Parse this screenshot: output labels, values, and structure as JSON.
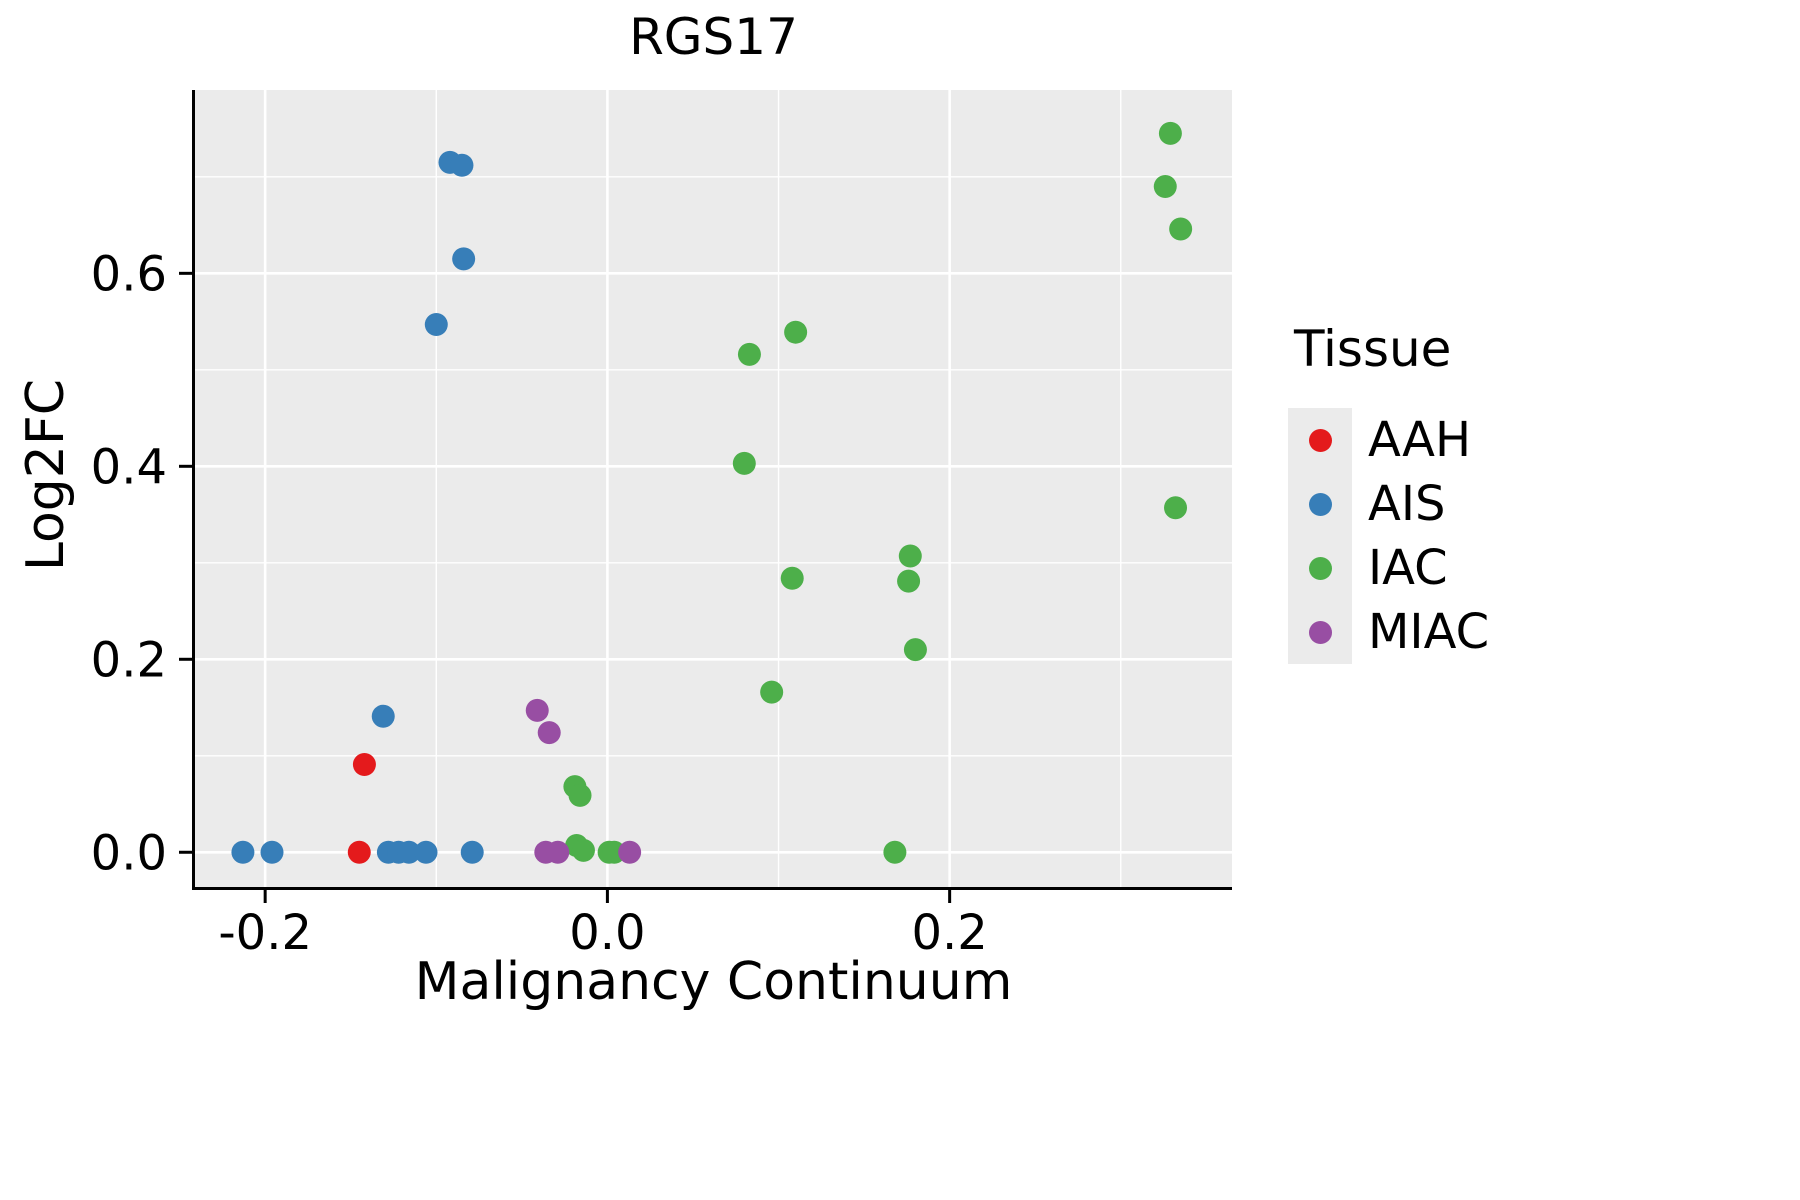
{
  "chart_data": {
    "type": "scatter",
    "title": "RGS17",
    "xlabel": "Malignancy Continuum",
    "ylabel": "Log2FC",
    "legend_title": "Tissue",
    "legend_position": "right",
    "grid": true,
    "panel_background": "#EBEBEB",
    "grid_color": "#FFFFFF",
    "axis_color": "#000000",
    "xlim": [
      -0.241,
      0.365
    ],
    "ylim": [
      -0.036,
      0.79
    ],
    "x_ticks": [
      -0.2,
      0.0,
      0.2
    ],
    "x_minor_ticks": [
      -0.1,
      0.1,
      0.3
    ],
    "x_ticklabels": [
      "-0.2",
      "0.0",
      "0.2"
    ],
    "y_ticks": [
      0.0,
      0.2,
      0.4,
      0.6
    ],
    "y_minor_ticks": [
      0.1,
      0.3,
      0.5,
      0.7
    ],
    "y_ticklabels": [
      "0.0",
      "0.2",
      "0.4",
      "0.6"
    ],
    "series": [
      {
        "name": "AAH",
        "color": "#E41A1C",
        "points": [
          [
            -0.142,
            0.091
          ],
          [
            -0.145,
            0.0
          ]
        ]
      },
      {
        "name": "AIS",
        "color": "#377EB8",
        "points": [
          [
            -0.092,
            0.715
          ],
          [
            -0.085,
            0.712
          ],
          [
            -0.084,
            0.615
          ],
          [
            -0.1,
            0.547
          ],
          [
            -0.131,
            0.141
          ],
          [
            -0.213,
            0.0
          ],
          [
            -0.196,
            0.0
          ],
          [
            -0.128,
            0.0
          ],
          [
            -0.122,
            0.0
          ],
          [
            -0.116,
            0.0
          ],
          [
            -0.106,
            0.0
          ],
          [
            -0.079,
            0.0
          ]
        ]
      },
      {
        "name": "IAC",
        "color": "#4DAF4A",
        "points": [
          [
            0.329,
            0.745
          ],
          [
            0.326,
            0.69
          ],
          [
            0.335,
            0.646
          ],
          [
            0.11,
            0.539
          ],
          [
            0.083,
            0.516
          ],
          [
            0.08,
            0.403
          ],
          [
            0.332,
            0.357
          ],
          [
            0.177,
            0.307
          ],
          [
            0.176,
            0.281
          ],
          [
            0.108,
            0.284
          ],
          [
            0.18,
            0.21
          ],
          [
            0.096,
            0.166
          ],
          [
            -0.019,
            0.068
          ],
          [
            -0.016,
            0.059
          ],
          [
            -0.018,
            0.007
          ],
          [
            -0.014,
            0.002
          ],
          [
            0.001,
            0.0
          ],
          [
            0.004,
            0.0
          ],
          [
            0.168,
            0.0
          ]
        ]
      },
      {
        "name": "MIAC",
        "color": "#984EA3",
        "points": [
          [
            -0.041,
            0.147
          ],
          [
            -0.034,
            0.124
          ],
          [
            -0.036,
            0.0
          ],
          [
            -0.029,
            0.0
          ],
          [
            0.013,
            0.0
          ]
        ]
      }
    ]
  }
}
